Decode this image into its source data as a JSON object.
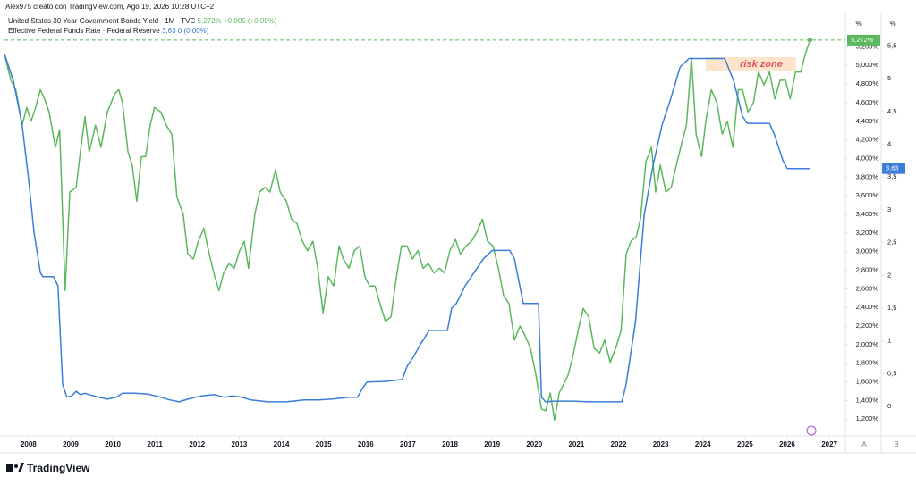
{
  "chart_data": {
    "type": "line",
    "caption": "Alex975 creato con TradingView.com, Ago 19, 2026 10:28 UTC+2",
    "brand": "TradingView",
    "y_unit": "%",
    "y2_unit": "%",
    "scale_buttons": [
      "A",
      "B"
    ],
    "annotation": "risk zone",
    "xlim": [
      2007.43,
      2027.38
    ],
    "xticks": [
      2008,
      2009,
      2010,
      2011,
      2012,
      2013,
      2014,
      2015,
      2016,
      2017,
      2018,
      2019,
      2020,
      2021,
      2022,
      2023,
      2024,
      2025,
      2026,
      2027
    ],
    "ylim": [
      1.02,
      5.3
    ],
    "yticks": [
      {
        "value": 1.2,
        "label": "1,200%"
      },
      {
        "value": 1.4,
        "label": "1,400%"
      },
      {
        "value": 1.6,
        "label": "1,600%"
      },
      {
        "value": 1.8,
        "label": "1,800%"
      },
      {
        "value": 2.0,
        "label": "2,000%"
      },
      {
        "value": 2.2,
        "label": "2,200%"
      },
      {
        "value": 2.4,
        "label": "2,400%"
      },
      {
        "value": 2.6,
        "label": "2,600%"
      },
      {
        "value": 2.8,
        "label": "2,800%"
      },
      {
        "value": 3.0,
        "label": "3,000%"
      },
      {
        "value": 3.2,
        "label": "3,200%"
      },
      {
        "value": 3.4,
        "label": "3,400%"
      },
      {
        "value": 3.6,
        "label": "3,600%"
      },
      {
        "value": 3.8,
        "label": "3,800%"
      },
      {
        "value": 4.0,
        "label": "4,000%"
      },
      {
        "value": 4.2,
        "label": "4,200%"
      },
      {
        "value": 4.4,
        "label": "4,400%"
      },
      {
        "value": 4.6,
        "label": "4,600%"
      },
      {
        "value": 4.8,
        "label": "4,800%"
      },
      {
        "value": 5.0,
        "label": "5,000%"
      },
      {
        "value": 5.2,
        "label": "5,200%"
      }
    ],
    "y2lim": [
      -0.45,
      5.63
    ],
    "y2ticks": [
      0,
      {
        "value": 0.5,
        "label": "0,5"
      },
      1,
      {
        "value": 1.5,
        "label": "1,5"
      },
      2,
      {
        "value": 2.5,
        "label": "2,5"
      },
      3,
      {
        "value": 3.5,
        "label": "3,5"
      },
      4,
      {
        "value": 4.5,
        "label": "4,5"
      },
      5,
      {
        "value": 5.5,
        "label": "5,5"
      }
    ],
    "grid": false,
    "series": [
      {
        "name": "United States 30 Year Government Bonds Yield · 1M · TVC",
        "color": "#5cb85c",
        "last_label": "5,272%",
        "change": "+0,005 (+0,09%)",
        "x": [
          2007.43,
          2007.58,
          2007.7,
          2007.85,
          2007.96,
          2008.06,
          2008.17,
          2008.28,
          2008.38,
          2008.49,
          2008.64,
          2008.74,
          2008.87,
          2008.98,
          2009.13,
          2009.23,
          2009.34,
          2009.44,
          2009.59,
          2009.72,
          2009.87,
          2010.04,
          2010.14,
          2010.23,
          2010.36,
          2010.46,
          2010.57,
          2010.68,
          2010.78,
          2010.89,
          2010.99,
          2011.14,
          2011.27,
          2011.4,
          2011.52,
          2011.67,
          2011.78,
          2011.91,
          2012.03,
          2012.16,
          2012.29,
          2012.42,
          2012.52,
          2012.63,
          2012.76,
          2012.88,
          2013.01,
          2013.12,
          2013.22,
          2013.37,
          2013.48,
          2013.61,
          2013.73,
          2013.86,
          2013.97,
          2014.12,
          2014.24,
          2014.37,
          2014.5,
          2014.62,
          2014.75,
          2014.86,
          2014.99,
          2015.11,
          2015.24,
          2015.37,
          2015.47,
          2015.6,
          2015.73,
          2015.86,
          2015.98,
          2016.09,
          2016.22,
          2016.34,
          2016.47,
          2016.6,
          2016.73,
          2016.85,
          2016.98,
          2017.11,
          2017.24,
          2017.36,
          2017.49,
          2017.62,
          2017.75,
          2017.87,
          2018.0,
          2018.13,
          2018.25,
          2018.38,
          2018.51,
          2018.64,
          2018.77,
          2018.89,
          2019.02,
          2019.15,
          2019.27,
          2019.4,
          2019.53,
          2019.66,
          2019.78,
          2019.91,
          2020.04,
          2020.17,
          2020.27,
          2020.38,
          2020.48,
          2020.59,
          2020.7,
          2020.8,
          2020.91,
          2021.04,
          2021.16,
          2021.29,
          2021.42,
          2021.55,
          2021.67,
          2021.8,
          2021.93,
          2022.06,
          2022.18,
          2022.29,
          2022.42,
          2022.52,
          2022.65,
          2022.78,
          2022.88,
          2022.99,
          2023.12,
          2023.25,
          2023.37,
          2023.5,
          2023.61,
          2023.73,
          2023.84,
          2023.97,
          2024.07,
          2024.2,
          2024.33,
          2024.46,
          2024.58,
          2024.71,
          2024.84,
          2024.94,
          2025.07,
          2025.2,
          2025.32,
          2025.45,
          2025.58,
          2025.71,
          2025.83,
          2025.96,
          2026.07,
          2026.2,
          2026.32,
          2026.43,
          2026.54
        ],
        "values": [
          5.12,
          4.84,
          4.74,
          4.36,
          4.55,
          4.4,
          4.55,
          4.74,
          4.64,
          4.5,
          4.12,
          4.31,
          2.58,
          3.64,
          3.69,
          4.07,
          4.45,
          4.07,
          4.36,
          4.12,
          4.5,
          4.69,
          4.74,
          4.6,
          4.07,
          3.93,
          3.54,
          4.02,
          4.02,
          4.36,
          4.55,
          4.5,
          4.36,
          4.26,
          3.59,
          3.4,
          2.97,
          2.92,
          3.11,
          3.25,
          2.97,
          2.73,
          2.58,
          2.77,
          2.87,
          2.82,
          3.01,
          3.11,
          2.82,
          3.4,
          3.64,
          3.69,
          3.64,
          3.88,
          3.64,
          3.54,
          3.35,
          3.3,
          3.11,
          3.01,
          3.11,
          2.82,
          2.34,
          2.73,
          2.63,
          3.06,
          2.92,
          2.82,
          3.01,
          3.06,
          2.73,
          2.63,
          2.63,
          2.44,
          2.25,
          2.3,
          2.73,
          3.06,
          3.06,
          2.92,
          3.01,
          2.82,
          2.87,
          2.77,
          2.82,
          2.77,
          3.01,
          3.13,
          2.97,
          3.06,
          3.11,
          3.21,
          3.35,
          3.11,
          3.06,
          2.82,
          2.53,
          2.44,
          2.05,
          2.2,
          2.1,
          1.96,
          1.67,
          1.31,
          1.29,
          1.48,
          1.19,
          1.48,
          1.58,
          1.67,
          1.86,
          2.15,
          2.39,
          2.3,
          1.96,
          1.91,
          2.05,
          1.81,
          1.96,
          2.15,
          2.97,
          3.11,
          3.16,
          3.35,
          3.97,
          4.12,
          3.64,
          3.93,
          3.64,
          3.69,
          3.93,
          4.17,
          4.36,
          5.08,
          4.26,
          4.02,
          4.4,
          4.74,
          4.6,
          4.26,
          4.4,
          4.12,
          4.74,
          4.74,
          4.5,
          4.6,
          4.93,
          4.79,
          4.93,
          4.64,
          4.84,
          4.84,
          4.64,
          4.93,
          4.93,
          5.12,
          5.272
        ]
      },
      {
        "name": "Effective Federal Funds Rate · Federal Reserve",
        "color": "#3b7dd8",
        "axis": "y2",
        "last_label": "3,63",
        "change": "0 (0,00%)",
        "x": [
          2007.43,
          2007.64,
          2007.85,
          2008.0,
          2008.13,
          2008.28,
          2008.34,
          2008.59,
          2008.7,
          2008.81,
          2008.91,
          2009.02,
          2009.13,
          2009.23,
          2009.34,
          2009.44,
          2009.66,
          2009.87,
          2010.08,
          2010.23,
          2010.51,
          2010.82,
          2011.14,
          2011.35,
          2011.57,
          2011.78,
          2012.1,
          2012.42,
          2012.63,
          2012.84,
          2013.05,
          2013.27,
          2013.69,
          2014.12,
          2014.54,
          2014.88,
          2015.18,
          2015.6,
          2015.81,
          2015.92,
          2016.03,
          2016.45,
          2016.87,
          2016.98,
          2017.13,
          2017.3,
          2017.51,
          2017.94,
          2018.04,
          2018.15,
          2018.36,
          2018.57,
          2018.79,
          2019.0,
          2019.42,
          2019.53,
          2019.74,
          2020.1,
          2020.17,
          2020.27,
          2020.48,
          2020.91,
          2021.33,
          2021.76,
          2022.08,
          2022.18,
          2022.4,
          2022.61,
          2022.82,
          2023.03,
          2023.24,
          2023.46,
          2023.67,
          2024.52,
          2024.73,
          2024.94,
          2025.05,
          2025.58,
          2025.69,
          2025.9,
          2026.0,
          2026.54
        ],
        "values": [
          5.38,
          4.97,
          4.29,
          3.47,
          2.66,
          2.04,
          1.98,
          1.98,
          1.84,
          0.34,
          0.14,
          0.16,
          0.23,
          0.18,
          0.2,
          0.18,
          0.14,
          0.11,
          0.14,
          0.2,
          0.2,
          0.19,
          0.14,
          0.1,
          0.07,
          0.11,
          0.16,
          0.18,
          0.14,
          0.16,
          0.14,
          0.1,
          0.07,
          0.07,
          0.1,
          0.1,
          0.11,
          0.14,
          0.14,
          0.27,
          0.37,
          0.38,
          0.41,
          0.61,
          0.75,
          0.95,
          1.16,
          1.16,
          1.5,
          1.57,
          1.84,
          2.04,
          2.25,
          2.38,
          2.38,
          2.25,
          1.57,
          1.57,
          0.14,
          0.07,
          0.08,
          0.08,
          0.07,
          0.07,
          0.07,
          0.34,
          1.29,
          2.93,
          3.68,
          4.29,
          4.7,
          5.18,
          5.31,
          5.31,
          4.97,
          4.43,
          4.32,
          4.32,
          4.16,
          3.75,
          3.63,
          3.63
        ]
      }
    ]
  }
}
